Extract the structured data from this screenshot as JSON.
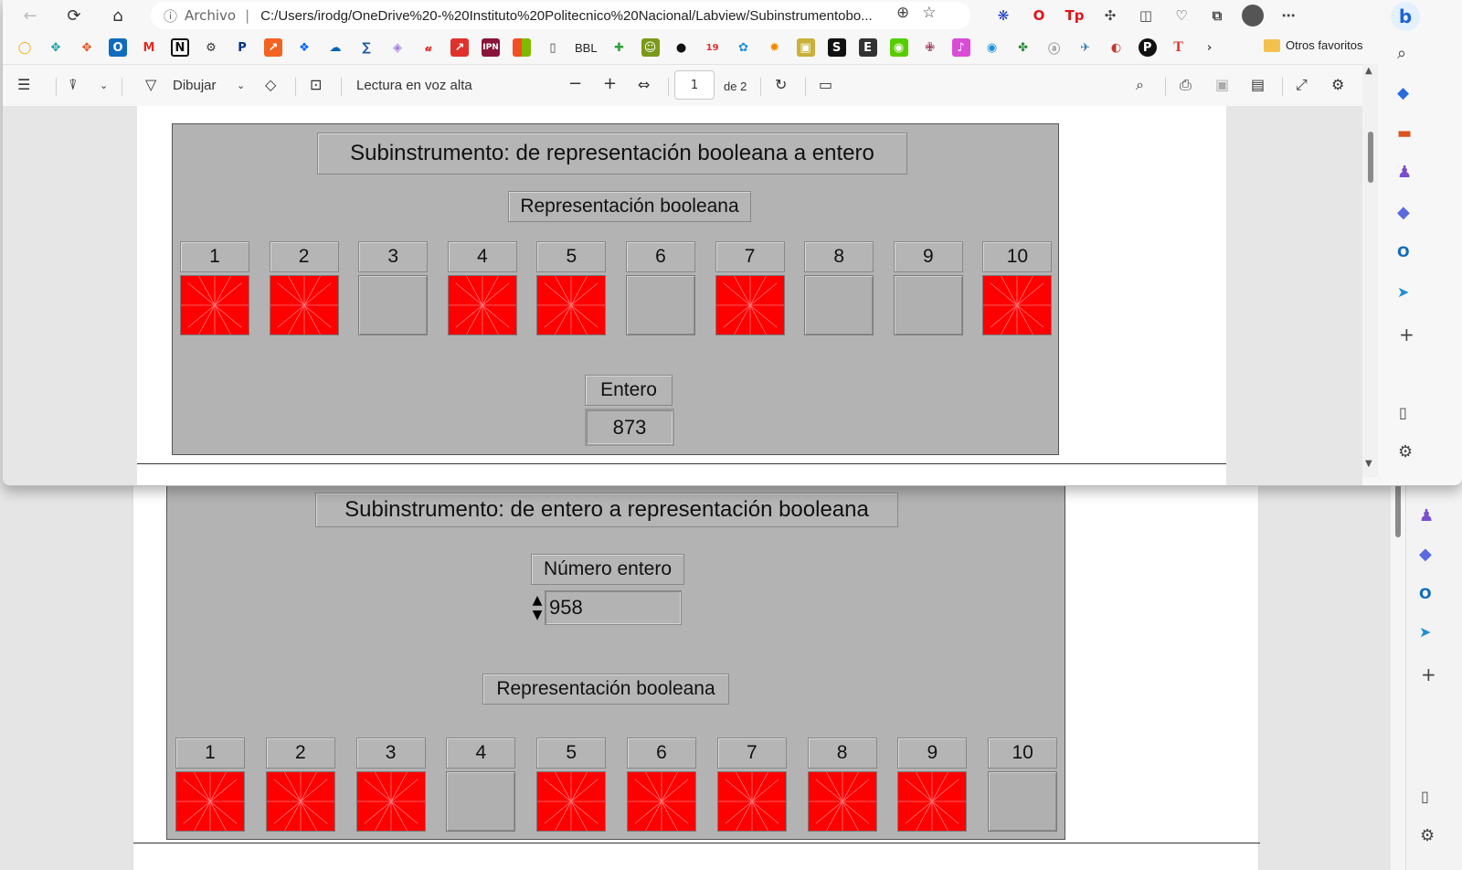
{
  "browser": {
    "address_origin": "Archivo",
    "url": "C:/Users/irodg/OneDrive%20-%20Instituto%20Politecnico%20Nacional/Labview/Subinstrumentobo...",
    "bookmark_text": "BBL",
    "other_favorites": "Otros favoritos"
  },
  "pdf_toolbar": {
    "draw_label": "Dibujar",
    "read_aloud_label": "Lectura en voz alta",
    "page_current": "1",
    "page_total": "de 2"
  },
  "panel_top": {
    "title": "Subinstrumento: de representación booleana a entero",
    "bool_label": "Representación booleana",
    "output_label": "Entero",
    "output_value": "873",
    "bits": [
      {
        "n": "1",
        "on": true
      },
      {
        "n": "2",
        "on": true
      },
      {
        "n": "3",
        "on": false
      },
      {
        "n": "4",
        "on": true
      },
      {
        "n": "5",
        "on": true
      },
      {
        "n": "6",
        "on": false
      },
      {
        "n": "7",
        "on": true
      },
      {
        "n": "8",
        "on": false
      },
      {
        "n": "9",
        "on": false
      },
      {
        "n": "10",
        "on": true
      }
    ]
  },
  "panel_bottom": {
    "title": "Subinstrumento: de entero a representación booleana",
    "input_label": "Número entero",
    "input_value": "958",
    "bool_label": "Representación booleana",
    "bits": [
      {
        "n": "1",
        "on": true
      },
      {
        "n": "2",
        "on": true
      },
      {
        "n": "3",
        "on": true
      },
      {
        "n": "4",
        "on": false
      },
      {
        "n": "5",
        "on": true
      },
      {
        "n": "6",
        "on": true
      },
      {
        "n": "7",
        "on": true
      },
      {
        "n": "8",
        "on": true
      },
      {
        "n": "9",
        "on": true
      },
      {
        "n": "10",
        "on": false
      }
    ]
  },
  "colors": {
    "led_on": "#ff0000",
    "led_off": "#b0b0b0",
    "panel_bg": "#b3b3b3"
  }
}
